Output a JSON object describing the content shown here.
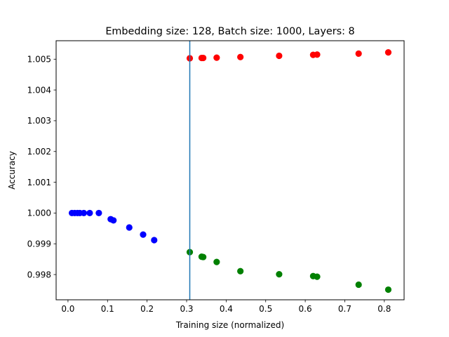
{
  "chart_data": {
    "type": "scatter",
    "title": "Embedding size: 128, Batch size: 1000, Layers: 8",
    "xlabel": "Training size (normalized)",
    "ylabel": "Accuracy",
    "xlim": [
      -0.03,
      0.85
    ],
    "ylim": [
      0.99718,
      1.0056
    ],
    "xticks": [
      "0.0",
      "0.1",
      "0.2",
      "0.3",
      "0.4",
      "0.5",
      "0.6",
      "0.7",
      "0.8"
    ],
    "xtick_values": [
      0.0,
      0.1,
      0.2,
      0.3,
      0.4,
      0.5,
      0.6,
      0.7,
      0.8
    ],
    "yticks": [
      "0.998",
      "0.999",
      "1.000",
      "1.001",
      "1.002",
      "1.003",
      "1.004",
      "1.005"
    ],
    "ytick_values": [
      0.998,
      0.999,
      1.0,
      1.001,
      1.002,
      1.003,
      1.004,
      1.005
    ],
    "grid": false,
    "vline": {
      "x": 0.308,
      "color": "#1f77b4"
    },
    "series": [
      {
        "color": "#0000ff",
        "points": [
          [
            0.01,
            1.0
          ],
          [
            0.017,
            1.0
          ],
          [
            0.024,
            1.0
          ],
          [
            0.03,
            1.0
          ],
          [
            0.04,
            1.0
          ],
          [
            0.055,
            1.0
          ],
          [
            0.078,
            1.0
          ],
          [
            0.108,
            0.9998
          ],
          [
            0.115,
            0.99976
          ],
          [
            0.155,
            0.99953
          ],
          [
            0.19,
            0.9993
          ],
          [
            0.218,
            0.99912
          ]
        ]
      },
      {
        "color": "#ff0000",
        "points": [
          [
            0.308,
            1.00503
          ],
          [
            0.338,
            1.00504
          ],
          [
            0.342,
            1.00504
          ],
          [
            0.376,
            1.00505
          ],
          [
            0.436,
            1.00507
          ],
          [
            0.534,
            1.00511
          ],
          [
            0.62,
            1.00514
          ],
          [
            0.63,
            1.00515
          ],
          [
            0.735,
            1.00518
          ],
          [
            0.81,
            1.00522
          ]
        ]
      },
      {
        "color": "#008000",
        "points": [
          [
            0.308,
            0.99873
          ],
          [
            0.338,
            0.99858
          ],
          [
            0.342,
            0.99857
          ],
          [
            0.376,
            0.99841
          ],
          [
            0.436,
            0.99811
          ],
          [
            0.534,
            0.99801
          ],
          [
            0.62,
            0.99795
          ],
          [
            0.63,
            0.99793
          ],
          [
            0.735,
            0.99767
          ],
          [
            0.81,
            0.99751
          ]
        ]
      }
    ]
  }
}
